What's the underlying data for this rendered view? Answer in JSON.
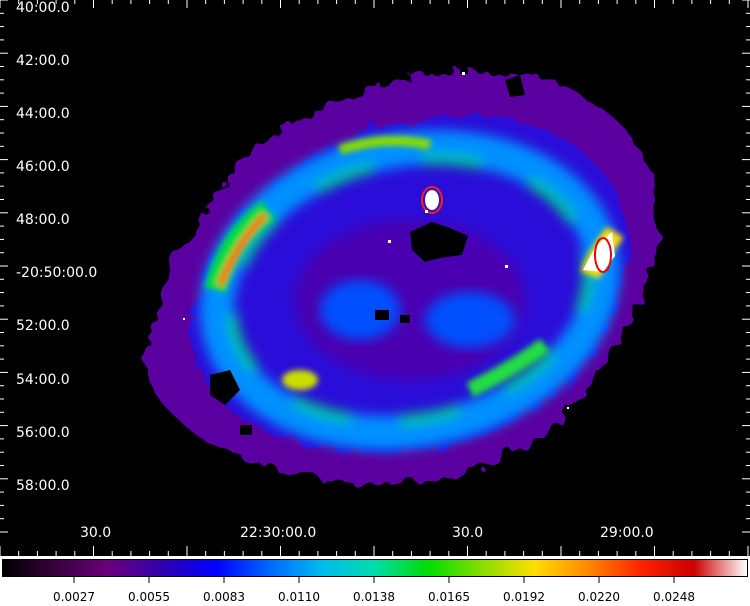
{
  "y_axis_labels": [
    "40:00.0",
    "42:00.0",
    "44:00.0",
    "46:00.0",
    "48:00.0",
    "-20:50:00.0",
    "52:00.0",
    "54:00.0",
    "56:00.0",
    "58:00.0"
  ],
  "x_axis_labels": [
    "30.0",
    "22:30:00.0",
    "30.0",
    "29:00.0"
  ],
  "colorbar": {
    "tick_labels": [
      "0.0027",
      "0.0055",
      "0.0083",
      "0.0110",
      "0.0138",
      "0.0165",
      "0.0192",
      "0.0220",
      "0.0248"
    ],
    "colors": [
      "#000000",
      "#3a003f",
      "#6a007a",
      "#3000b0",
      "#0000ff",
      "#0066ff",
      "#00bbee",
      "#00ddaa",
      "#00dd00",
      "#88dd00",
      "#ffdd00",
      "#ff8800",
      "#ff2200",
      "#cc0000",
      "#ffffff"
    ]
  }
}
